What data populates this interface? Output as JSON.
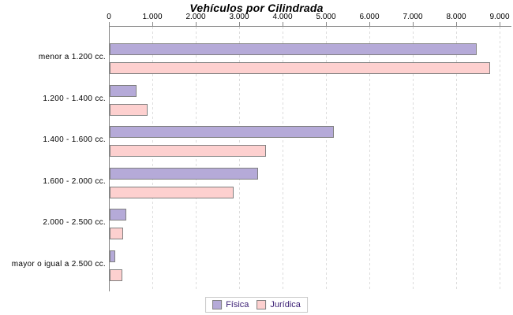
{
  "chart_data": {
    "type": "bar",
    "orientation": "horizontal",
    "title": "Vehículos por Cilindrada",
    "xlabel": "",
    "ylabel": "",
    "categories": [
      "menor a 1.200 cc.",
      "1.200 - 1.400 cc.",
      "1.400 - 1.600 cc.",
      "1.600 - 2.000 cc.",
      "2.000 - 2.500 cc.",
      "mayor o igual a 2.500 cc."
    ],
    "series": [
      {
        "name": "Física",
        "color": "#b5aad8",
        "values": [
          8450,
          620,
          5160,
          3420,
          380,
          130
        ]
      },
      {
        "name": "Jurídica",
        "color": "#fdd0cf",
        "values": [
          8760,
          870,
          3600,
          2850,
          310,
          290
        ]
      }
    ],
    "x_axis": {
      "position": "top",
      "min": 0,
      "max": 9000,
      "tick_labels": [
        "0",
        "1.000",
        "2.000",
        "3.000",
        "4.000",
        "5.000",
        "6.000",
        "7.000",
        "8.000",
        "9.000"
      ],
      "tick_values": [
        0,
        1000,
        2000,
        3000,
        4000,
        5000,
        6000,
        7000,
        8000,
        9000
      ],
      "gridlines": "dashed-vertical"
    },
    "legend": {
      "position": "bottom",
      "entries": [
        "Física",
        "Jurídica"
      ]
    },
    "colors": {
      "background": "#ffffff",
      "bar_border": "#808080",
      "axis_line": "#888888",
      "gridline": "#dcdcdc",
      "text": "#000000",
      "legend_text": "#3d2176",
      "legend_border": "#c8c8c8"
    }
  }
}
